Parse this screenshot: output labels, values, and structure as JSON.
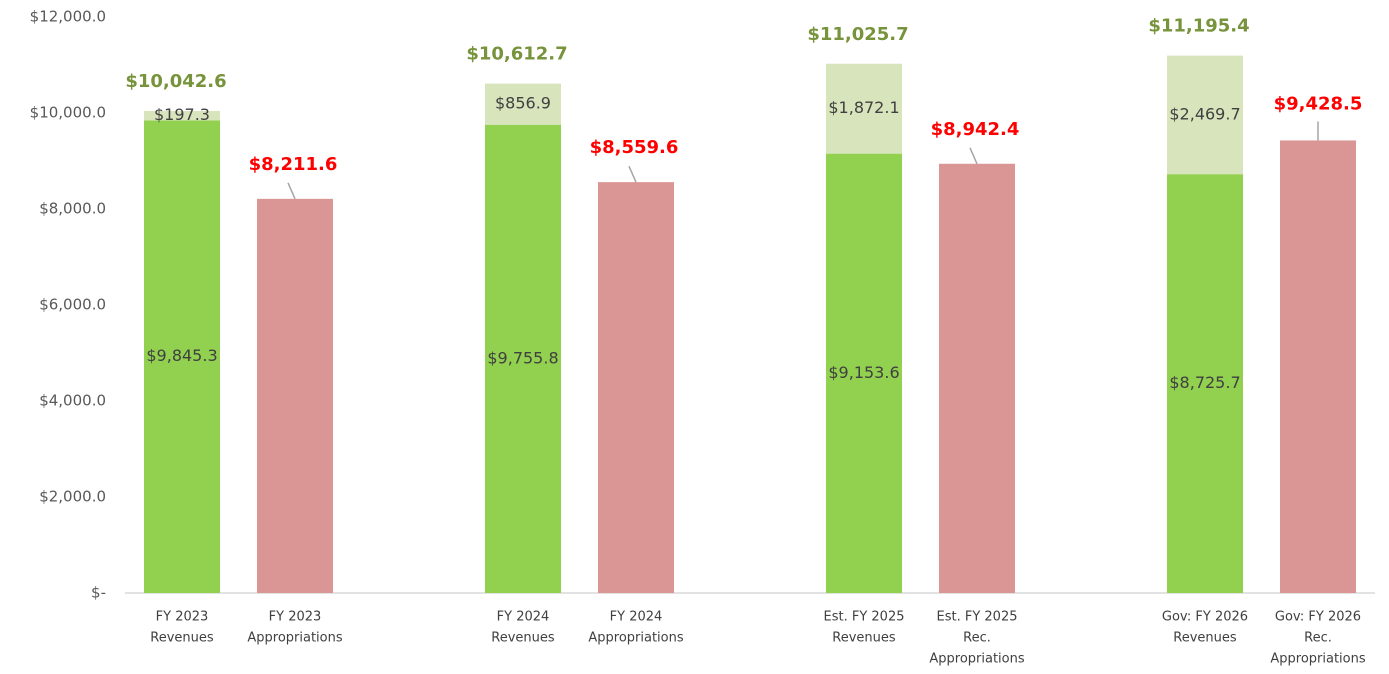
{
  "chart_data": {
    "type": "stacked-bar",
    "categories": [
      [
        "FY 2023",
        "Revenues"
      ],
      [
        "FY 2023",
        "Appropriations"
      ],
      [
        "FY 2024",
        "Revenues"
      ],
      [
        "FY 2024",
        "Appropriations"
      ],
      [
        "Est. FY 2025",
        "Revenues"
      ],
      [
        "Est. FY 2025",
        "Rec.",
        "Appropriations"
      ],
      [
        "Gov: FY 2026",
        "Revenues"
      ],
      [
        "Gov: FY 2026",
        "Rec.",
        "Appropriations"
      ]
    ],
    "series": [
      {
        "color": "#92d050",
        "label_style": "inside",
        "values": [
          9845.3,
          null,
          9755.8,
          null,
          9153.6,
          null,
          8725.7,
          null
        ],
        "value_labels": [
          "$9,845.3",
          null,
          "$9,755.8",
          null,
          "$9,153.6",
          null,
          "$8,725.7",
          null
        ]
      },
      {
        "color": "#d8e4bc",
        "label_style": "inside",
        "values": [
          197.3,
          null,
          856.9,
          null,
          1872.1,
          null,
          2469.7,
          null
        ],
        "value_labels": [
          "$197.3",
          null,
          "$856.9",
          null,
          "$1,872.1",
          null,
          "$2,469.7",
          null
        ]
      },
      {
        "color": "#da9694",
        "label_style": "above",
        "label_color": "#ff0000",
        "values": [
          null,
          8211.6,
          null,
          8559.6,
          null,
          8942.4,
          null,
          9428.5
        ],
        "value_labels": [
          null,
          "$8,211.6",
          null,
          "$8,559.6",
          null,
          "$8,942.4",
          null,
          "$9,428.5"
        ]
      }
    ],
    "totals": {
      "label_color": "#77933c",
      "values": [
        10042.6,
        null,
        10612.7,
        null,
        11025.7,
        null,
        11195.4,
        null
      ],
      "value_labels": [
        "$10,042.6",
        null,
        "$10,612.7",
        null,
        "$11,025.7",
        null,
        "$11,195.4",
        null
      ]
    },
    "ylim": [
      0,
      12000
    ],
    "yticks": [
      {
        "value": 0,
        "label": "$-"
      },
      {
        "value": 2000,
        "label": "$2,000.0"
      },
      {
        "value": 4000,
        "label": "$4,000.0"
      },
      {
        "value": 6000,
        "label": "$6,000.0"
      },
      {
        "value": 8000,
        "label": "$8,000.0"
      },
      {
        "value": 10000,
        "label": "$10,000.0"
      },
      {
        "value": 12000,
        "label": "$12,000.0"
      }
    ]
  }
}
